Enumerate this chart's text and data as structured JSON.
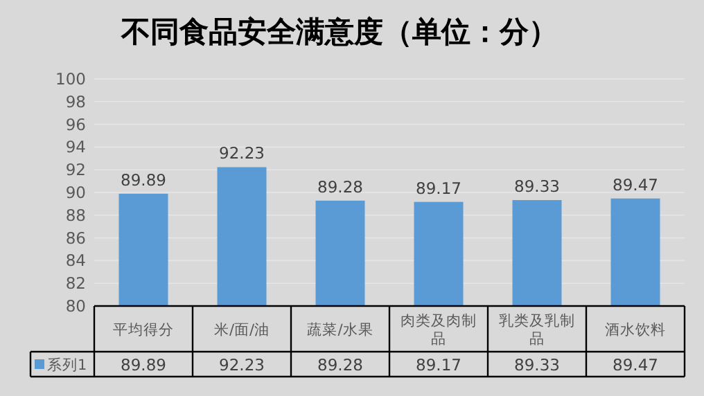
{
  "chart_data": {
    "type": "bar",
    "title": "不同食品安全满意度（单位：分）",
    "categories": [
      "平均得分",
      "米/面/油",
      "蔬菜/水果",
      "肉类及肉制品",
      "乳类及乳制品",
      "酒水饮料"
    ],
    "series": [
      {
        "name": "系列1",
        "color": "#5b9bd5",
        "values": [
          89.89,
          92.23,
          89.28,
          89.17,
          89.33,
          89.47
        ],
        "value_labels": [
          "89.89",
          "92.23",
          "89.28",
          "89.17",
          "89.33",
          "89.47"
        ]
      }
    ],
    "ylim": [
      80,
      100
    ],
    "yticks": [
      80,
      82,
      84,
      86,
      88,
      90,
      92,
      94,
      96,
      98,
      100
    ],
    "grid": "y",
    "data_labels": true,
    "legend": "bottom"
  }
}
